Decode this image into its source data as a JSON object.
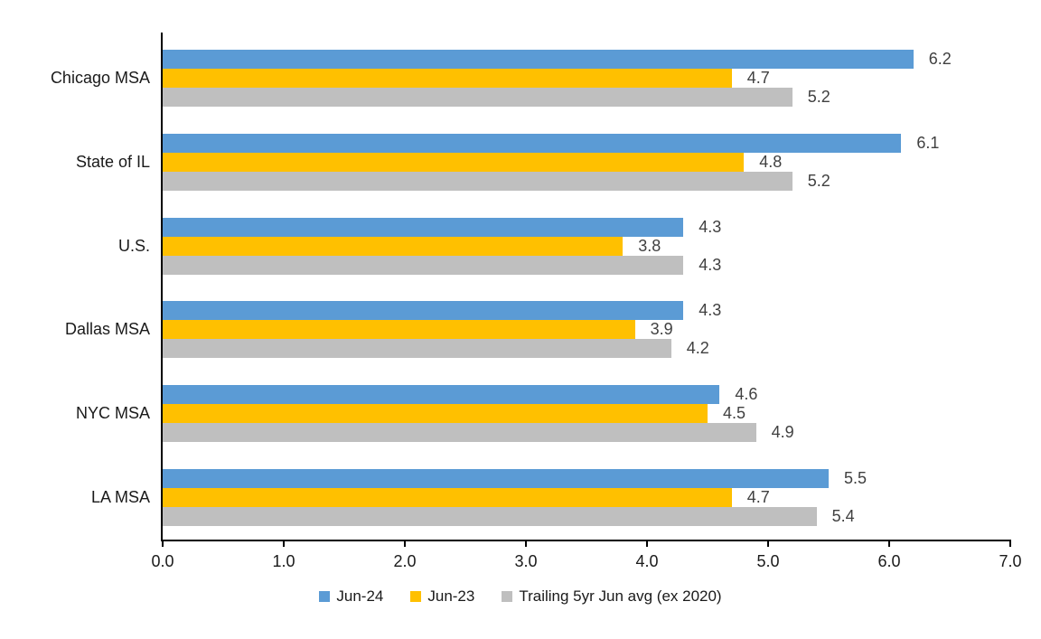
{
  "chart_data": {
    "type": "bar",
    "orientation": "horizontal",
    "title": "",
    "xlabel": "",
    "ylabel": "",
    "categories": [
      "Chicago MSA",
      "State of IL",
      "U.S.",
      "Dallas MSA",
      "NYC MSA",
      "LA MSA"
    ],
    "series": [
      {
        "name": "Jun-24",
        "color": "#5B9BD5",
        "values": [
          6.2,
          6.1,
          4.3,
          4.3,
          4.6,
          5.5
        ]
      },
      {
        "name": "Jun-23",
        "color": "#FFC000",
        "values": [
          4.7,
          4.8,
          3.8,
          3.9,
          4.5,
          4.7
        ]
      },
      {
        "name": "Trailing 5yr Jun avg (ex 2020)",
        "color": "#BFBFBF",
        "values": [
          5.2,
          5.2,
          4.3,
          4.2,
          4.9,
          5.4
        ]
      }
    ],
    "xlim": [
      0,
      7
    ],
    "x_ticks": [
      "0.0",
      "1.0",
      "2.0",
      "3.0",
      "4.0",
      "5.0",
      "6.0",
      "7.0"
    ],
    "grid": false,
    "data_labels": true,
    "legend_position": "bottom",
    "colors": {
      "axis": "#000000",
      "data_label": "#404040",
      "axis_text": "#1a1a1a",
      "background": "#ffffff"
    }
  }
}
